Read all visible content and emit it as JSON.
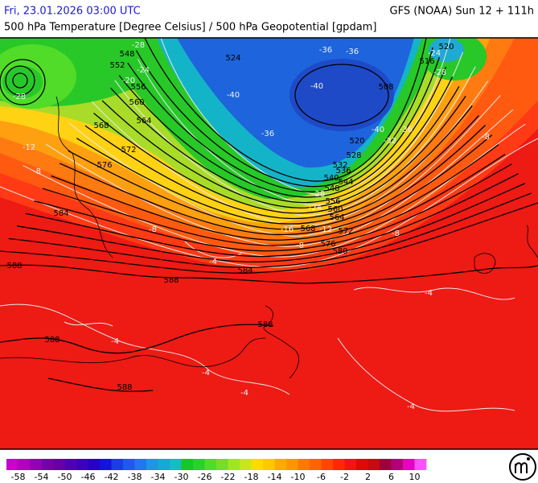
{
  "header": {
    "datetime": "Fri, 23.01.2026 03:00 UTC",
    "model": "GFS (NOAA) Sun 12 + 111h",
    "title": "500 hPa Temperature [Degree Celsius] / 500 hPa Geopotential [gpdam]"
  },
  "map": {
    "geopotential_labels": [
      548,
      552,
      556,
      560,
      564,
      568,
      572,
      576,
      584,
      588,
      588,
      584,
      588,
      588,
      588,
      524,
      508,
      516,
      520,
      520,
      528,
      532,
      536,
      540,
      544,
      548,
      556,
      560,
      564,
      568,
      572,
      576,
      580
    ],
    "temperature_labels": [
      -28,
      -24,
      -20,
      -28,
      -12,
      -8,
      -8,
      -4,
      -36,
      -36,
      -40,
      -40,
      -36,
      -40,
      -36,
      -32,
      -28,
      -24,
      -28,
      -24,
      -16,
      -12,
      -8,
      -8,
      -8,
      -4,
      -4,
      -4,
      -4,
      -4
    ]
  },
  "colorbar": {
    "lim": [
      -60,
      12
    ],
    "colors": [
      "#c800c8",
      "#b400be",
      "#9600b4",
      "#7800aa",
      "#6400aa",
      "#5000b4",
      "#3c00be",
      "#2800c8",
      "#1414dc",
      "#1e3ce6",
      "#1e5af0",
      "#1e78f0",
      "#1e96e6",
      "#14aad2",
      "#14bebe",
      "#14c828",
      "#28d228",
      "#50dc28",
      "#78dc28",
      "#a0e61e",
      "#c8e61e",
      "#ffdc00",
      "#ffc800",
      "#ffaa00",
      "#ff9600",
      "#ff7800",
      "#ff6400",
      "#ff4600",
      "#ff2800",
      "#f01414",
      "#dc0a0a",
      "#c80a14",
      "#a0003c",
      "#b40078",
      "#e600c8",
      "#ff50ff"
    ],
    "ticks": [
      -58,
      -54,
      -50,
      -46,
      -42,
      -38,
      -34,
      -30,
      -26,
      -22,
      -18,
      -14,
      -10,
      -6,
      -2,
      2,
      6,
      10
    ]
  }
}
